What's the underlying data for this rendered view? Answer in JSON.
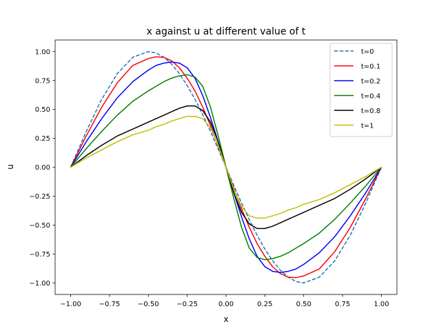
{
  "chart_data": {
    "type": "line",
    "title": "x against u at different value of t",
    "xlabel": "x",
    "ylabel": "u",
    "xlim": [
      -1.1,
      1.1
    ],
    "ylim": [
      -1.1,
      1.1
    ],
    "xticks": [
      -1.0,
      -0.75,
      -0.5,
      -0.25,
      0.0,
      0.25,
      0.5,
      0.75,
      1.0
    ],
    "xtick_labels": [
      "−1.00",
      "−0.75",
      "−0.50",
      "−0.25",
      "0.00",
      "0.25",
      "0.50",
      "0.75",
      "1.00"
    ],
    "yticks": [
      -1.0,
      -0.75,
      -0.5,
      -0.25,
      0.0,
      0.25,
      0.5,
      0.75,
      1.0
    ],
    "ytick_labels": [
      "−1.00",
      "−0.75",
      "−0.50",
      "−0.25",
      "0.00",
      "0.25",
      "0.50",
      "0.75",
      "1.00"
    ],
    "grid": false,
    "legend_position": "top-right",
    "x": [
      -1.0,
      -0.9,
      -0.8,
      -0.7,
      -0.6,
      -0.5,
      -0.45,
      -0.4,
      -0.35,
      -0.3,
      -0.25,
      -0.2,
      -0.15,
      -0.1,
      -0.05,
      0.0,
      0.05,
      0.1,
      0.15,
      0.2,
      0.25,
      0.3,
      0.35,
      0.4,
      0.45,
      0.5,
      0.6,
      0.7,
      0.8,
      0.9,
      1.0
    ],
    "series": [
      {
        "name": "t=0",
        "color": "#1f77b4",
        "dashed": true,
        "values": [
          0.0,
          0.309,
          0.588,
          0.809,
          0.951,
          1.0,
          0.988,
          0.951,
          0.891,
          0.809,
          0.707,
          0.588,
          0.454,
          0.309,
          0.156,
          0.0,
          -0.156,
          -0.309,
          -0.454,
          -0.588,
          -0.707,
          -0.809,
          -0.891,
          -0.951,
          -0.988,
          -1.0,
          -0.951,
          -0.809,
          -0.588,
          -0.309,
          0.0
        ]
      },
      {
        "name": "t=0.1",
        "color": "#ff0000",
        "dashed": false,
        "values": [
          0.0,
          0.27,
          0.52,
          0.73,
          0.88,
          0.94,
          0.955,
          0.95,
          0.92,
          0.86,
          0.77,
          0.66,
          0.52,
          0.36,
          0.18,
          0.0,
          -0.18,
          -0.36,
          -0.52,
          -0.66,
          -0.77,
          -0.86,
          -0.92,
          -0.95,
          -0.955,
          -0.94,
          -0.88,
          -0.73,
          -0.52,
          -0.27,
          0.0
        ]
      },
      {
        "name": "t=0.2",
        "color": "#0000ff",
        "dashed": false,
        "values": [
          0.0,
          0.22,
          0.42,
          0.6,
          0.74,
          0.84,
          0.88,
          0.9,
          0.91,
          0.9,
          0.86,
          0.77,
          0.62,
          0.43,
          0.22,
          0.0,
          -0.22,
          -0.43,
          -0.62,
          -0.77,
          -0.86,
          -0.9,
          -0.91,
          -0.9,
          -0.88,
          -0.84,
          -0.74,
          -0.6,
          -0.42,
          -0.22,
          0.0
        ]
      },
      {
        "name": "t=0.4",
        "color": "#008000",
        "dashed": false,
        "values": [
          0.0,
          0.16,
          0.31,
          0.45,
          0.57,
          0.66,
          0.7,
          0.74,
          0.77,
          0.79,
          0.8,
          0.78,
          0.7,
          0.52,
          0.27,
          0.0,
          -0.27,
          -0.52,
          -0.7,
          -0.78,
          -0.8,
          -0.79,
          -0.77,
          -0.74,
          -0.7,
          -0.66,
          -0.57,
          -0.45,
          -0.31,
          -0.16,
          0.0
        ]
      },
      {
        "name": "t=0.8",
        "color": "#000000",
        "dashed": false,
        "values": [
          0.0,
          0.1,
          0.19,
          0.27,
          0.33,
          0.39,
          0.42,
          0.45,
          0.48,
          0.51,
          0.53,
          0.53,
          0.49,
          0.39,
          0.22,
          0.0,
          -0.22,
          -0.39,
          -0.49,
          -0.53,
          -0.53,
          -0.51,
          -0.48,
          -0.45,
          -0.42,
          -0.39,
          -0.33,
          -0.27,
          -0.19,
          -0.1,
          0.0
        ]
      },
      {
        "name": "t=1",
        "color": "#bfbf00",
        "dashed": false,
        "values": [
          0.0,
          0.08,
          0.15,
          0.22,
          0.28,
          0.32,
          0.35,
          0.37,
          0.4,
          0.42,
          0.44,
          0.44,
          0.42,
          0.34,
          0.19,
          0.0,
          -0.19,
          -0.34,
          -0.42,
          -0.44,
          -0.44,
          -0.42,
          -0.4,
          -0.37,
          -0.35,
          -0.32,
          -0.28,
          -0.22,
          -0.15,
          -0.08,
          0.0
        ]
      }
    ]
  }
}
